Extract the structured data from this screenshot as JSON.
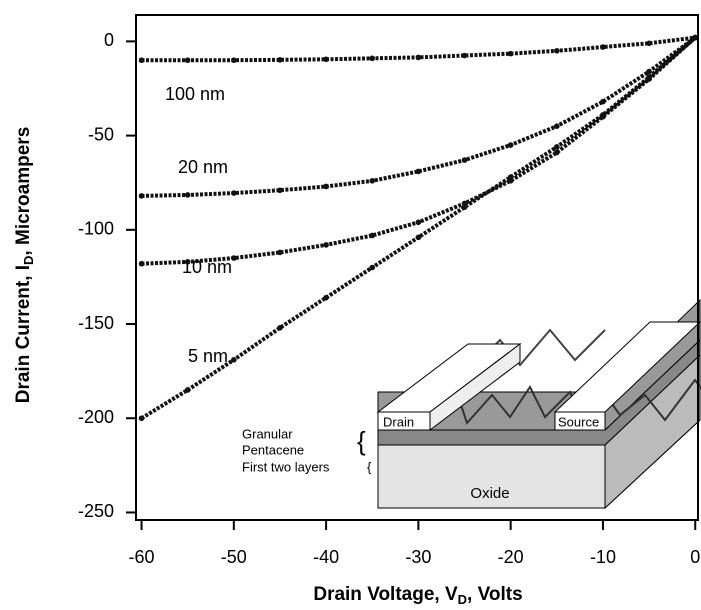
{
  "chart_data": {
    "type": "line",
    "x": [
      -60,
      -55,
      -50,
      -45,
      -40,
      -35,
      -30,
      -25,
      -20,
      -15,
      -10,
      -5,
      0
    ],
    "series": [
      {
        "name": "100 nm",
        "color": "#111111",
        "values": [
          -10,
          -10,
          -10,
          -9.8,
          -9.5,
          -9,
          -8.5,
          -7.5,
          -6.5,
          -5,
          -3,
          -1,
          2
        ]
      },
      {
        "name": "20 nm",
        "color": "#111111",
        "values": [
          -82,
          -81.5,
          -80.5,
          -79,
          -77,
          -74,
          -69,
          -63,
          -55,
          -45,
          -32,
          -16,
          2
        ]
      },
      {
        "name": "10 nm",
        "color": "#111111",
        "values": [
          -118,
          -117,
          -115,
          -112,
          -108,
          -103,
          -96,
          -86,
          -74,
          -59,
          -40,
          -20,
          2
        ]
      },
      {
        "name": "5 nm",
        "color": "#111111",
        "values": [
          -200,
          -185,
          -169,
          -152,
          -136,
          -120,
          -104,
          -88,
          -72,
          -56,
          -39,
          -19,
          2
        ]
      }
    ],
    "xlabel": {
      "text": "Drain Voltage, V",
      "sub": "D",
      "tail": ", Volts"
    },
    "ylabel": {
      "text": "Drain Current, I",
      "sub": "D",
      "tail": ", Microampers"
    },
    "xlim": [
      -60.6,
      0.3
    ],
    "ylim": [
      -254,
      14
    ],
    "xticks": [
      -60,
      -50,
      -40,
      -30,
      -20,
      -10,
      0
    ],
    "yticks": [
      0,
      -50,
      -100,
      -150,
      -200,
      -250
    ],
    "inset": {
      "drain": "Drain",
      "source": "Source",
      "granular": [
        "Granular",
        "Pentacene"
      ],
      "first": "First two layers",
      "oxide": "Oxide"
    }
  }
}
